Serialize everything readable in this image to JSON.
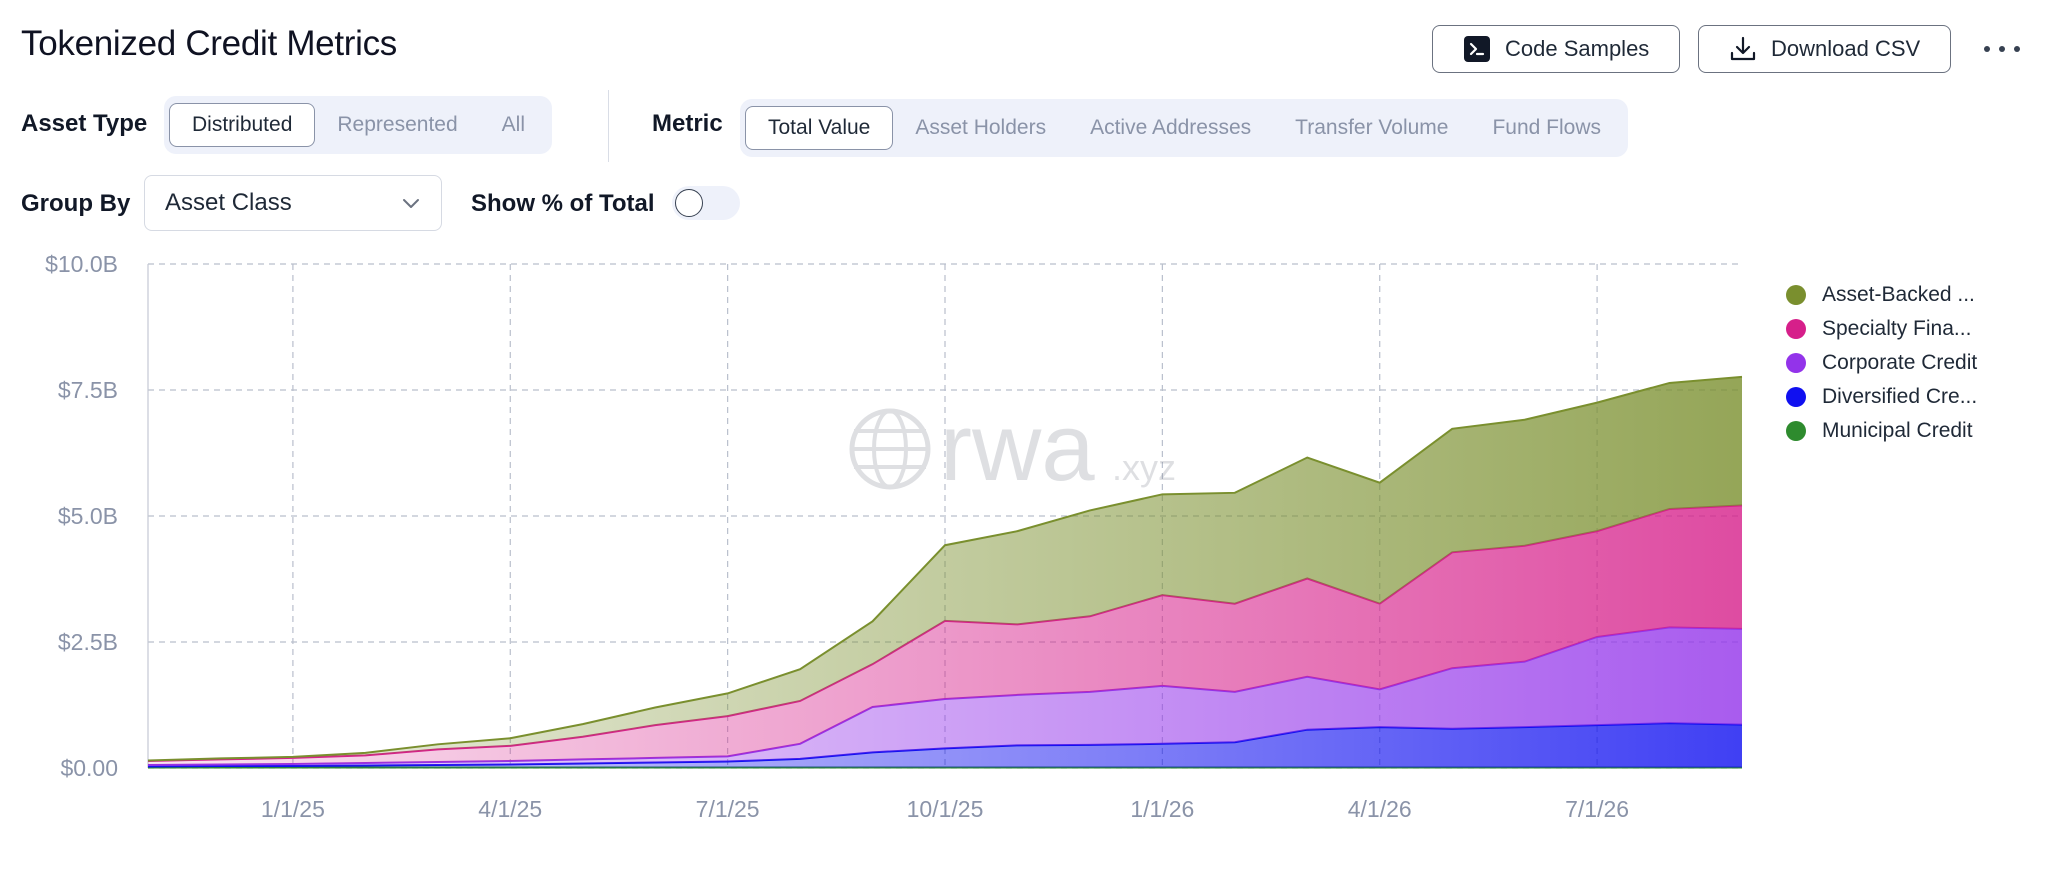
{
  "header": {
    "title": "Tokenized Credit Metrics",
    "code_samples_label": "Code Samples",
    "download_label": "Download CSV"
  },
  "controls": {
    "asset_type": {
      "label": "Asset Type",
      "options": [
        "Distributed",
        "Represented",
        "All"
      ],
      "selected": "Distributed"
    },
    "metric": {
      "label": "Metric",
      "options": [
        "Total Value",
        "Asset Holders",
        "Active Addresses",
        "Transfer Volume",
        "Fund Flows"
      ],
      "selected": "Total Value"
    },
    "group_by": {
      "label": "Group By",
      "value": "Asset Class"
    },
    "show_pct": {
      "label": "Show % of Total",
      "on": false
    }
  },
  "watermark": {
    "text": "rwa",
    "suffix": ".xyz"
  },
  "chart_data": {
    "type": "area",
    "stacked": true,
    "title": "",
    "xlabel": "",
    "ylabel": "",
    "x_ticks": [
      "1/1/25",
      "4/1/25",
      "7/1/25",
      "10/1/25",
      "1/1/26",
      "4/1/26",
      "7/1/26"
    ],
    "y_ticks": [
      "$0.00",
      "$2.5B",
      "$5.0B",
      "$7.5B",
      "$10.0B"
    ],
    "ylim": [
      0,
      10
    ],
    "y_unit": "billions USD",
    "x": [
      "11/1/24",
      "12/1/24",
      "1/1/25",
      "2/1/25",
      "3/1/25",
      "4/1/25",
      "5/1/25",
      "6/1/25",
      "7/1/25",
      "8/1/25",
      "9/1/25",
      "10/1/25",
      "11/1/25",
      "12/1/25",
      "1/1/26",
      "2/1/26",
      "3/1/26",
      "4/1/26",
      "5/1/26",
      "6/1/26",
      "7/1/26",
      "8/1/26",
      "9/1/26"
    ],
    "legend_position": "right",
    "grid": true,
    "series": [
      {
        "name": "Municipal Credit",
        "legend_label": "Municipal Credit",
        "color": "#2e8b2e",
        "values": [
          0.01,
          0.01,
          0.01,
          0.01,
          0.01,
          0.01,
          0.01,
          0.01,
          0.01,
          0.01,
          0.01,
          0.01,
          0.01,
          0.01,
          0.01,
          0.01,
          0.01,
          0.01,
          0.01,
          0.01,
          0.01,
          0.01,
          0.01
        ]
      },
      {
        "name": "Diversified Credit",
        "legend_label": "Diversified Cre...",
        "color": "#1010f0",
        "values": [
          0.02,
          0.03,
          0.03,
          0.04,
          0.05,
          0.06,
          0.08,
          0.1,
          0.12,
          0.17,
          0.3,
          0.38,
          0.44,
          0.45,
          0.47,
          0.5,
          0.75,
          0.8,
          0.77,
          0.8,
          0.84,
          0.88,
          0.85
        ]
      },
      {
        "name": "Corporate Credit",
        "legend_label": "Corporate Credit",
        "color": "#9333ea",
        "values": [
          0.03,
          0.03,
          0.04,
          0.05,
          0.06,
          0.07,
          0.08,
          0.09,
          0.1,
          0.3,
          0.9,
          0.98,
          1.0,
          1.05,
          1.15,
          1.0,
          1.05,
          0.75,
          1.2,
          1.3,
          1.75,
          1.9,
          1.9
        ]
      },
      {
        "name": "Specialty Finance",
        "legend_label": "Specialty Fina...",
        "color": "#d61f8a",
        "values": [
          0.08,
          0.1,
          0.12,
          0.15,
          0.25,
          0.3,
          0.45,
          0.65,
          0.8,
          0.85,
          0.85,
          1.55,
          1.4,
          1.5,
          1.8,
          1.75,
          1.95,
          1.7,
          2.3,
          2.3,
          2.1,
          2.35,
          2.45
        ]
      },
      {
        "name": "Asset-Backed Credit",
        "legend_label": "Asset-Backed ...",
        "color": "#7a8f2e",
        "values": [
          0.01,
          0.02,
          0.02,
          0.05,
          0.1,
          0.15,
          0.25,
          0.35,
          0.45,
          0.63,
          0.85,
          1.5,
          1.85,
          2.1,
          2.0,
          2.2,
          2.4,
          2.4,
          2.45,
          2.5,
          2.55,
          2.5,
          2.55
        ]
      }
    ]
  }
}
